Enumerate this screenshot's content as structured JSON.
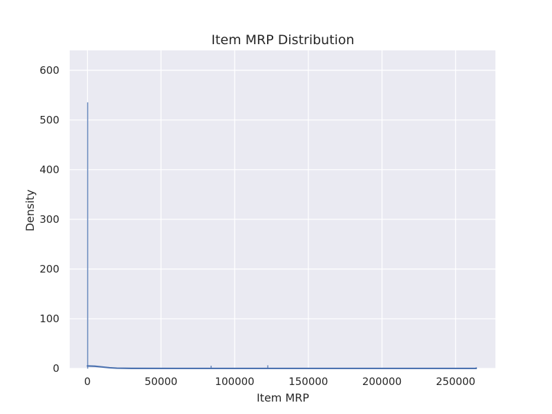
{
  "chart_data": {
    "type": "histogram",
    "title": "Item MRP Distribution",
    "xlabel": "Item MRP",
    "ylabel": "Density",
    "xlim": [
      -12000,
      277000
    ],
    "ylim": [
      0,
      640
    ],
    "x_ticks": [
      0,
      50000,
      100000,
      150000,
      200000,
      250000
    ],
    "y_ticks": [
      0,
      100,
      200,
      300,
      400,
      500,
      600
    ],
    "grid": true,
    "background": "#eaeaf2",
    "grid_color": "#ffffff",
    "series": [
      {
        "kind": "histogram_bars",
        "color": "#4c72b0",
        "bins": [
          {
            "x": 200,
            "y": 535
          },
          {
            "x": 84000,
            "y": 5
          },
          {
            "x": 122500,
            "y": 6
          },
          {
            "x": 264000,
            "y": 2
          }
        ]
      },
      {
        "kind": "kde_line",
        "color": "#4c72b0",
        "points": [
          {
            "x": 0,
            "y": 5
          },
          {
            "x": 5000,
            "y": 4.5
          },
          {
            "x": 10000,
            "y": 3
          },
          {
            "x": 15000,
            "y": 1.5
          },
          {
            "x": 20000,
            "y": 0.6
          },
          {
            "x": 30000,
            "y": 0.2
          },
          {
            "x": 60000,
            "y": 0.1
          },
          {
            "x": 100000,
            "y": 0.1
          },
          {
            "x": 150000,
            "y": 0.1
          },
          {
            "x": 200000,
            "y": 0.1
          },
          {
            "x": 264000,
            "y": 0.1
          }
        ]
      }
    ]
  }
}
